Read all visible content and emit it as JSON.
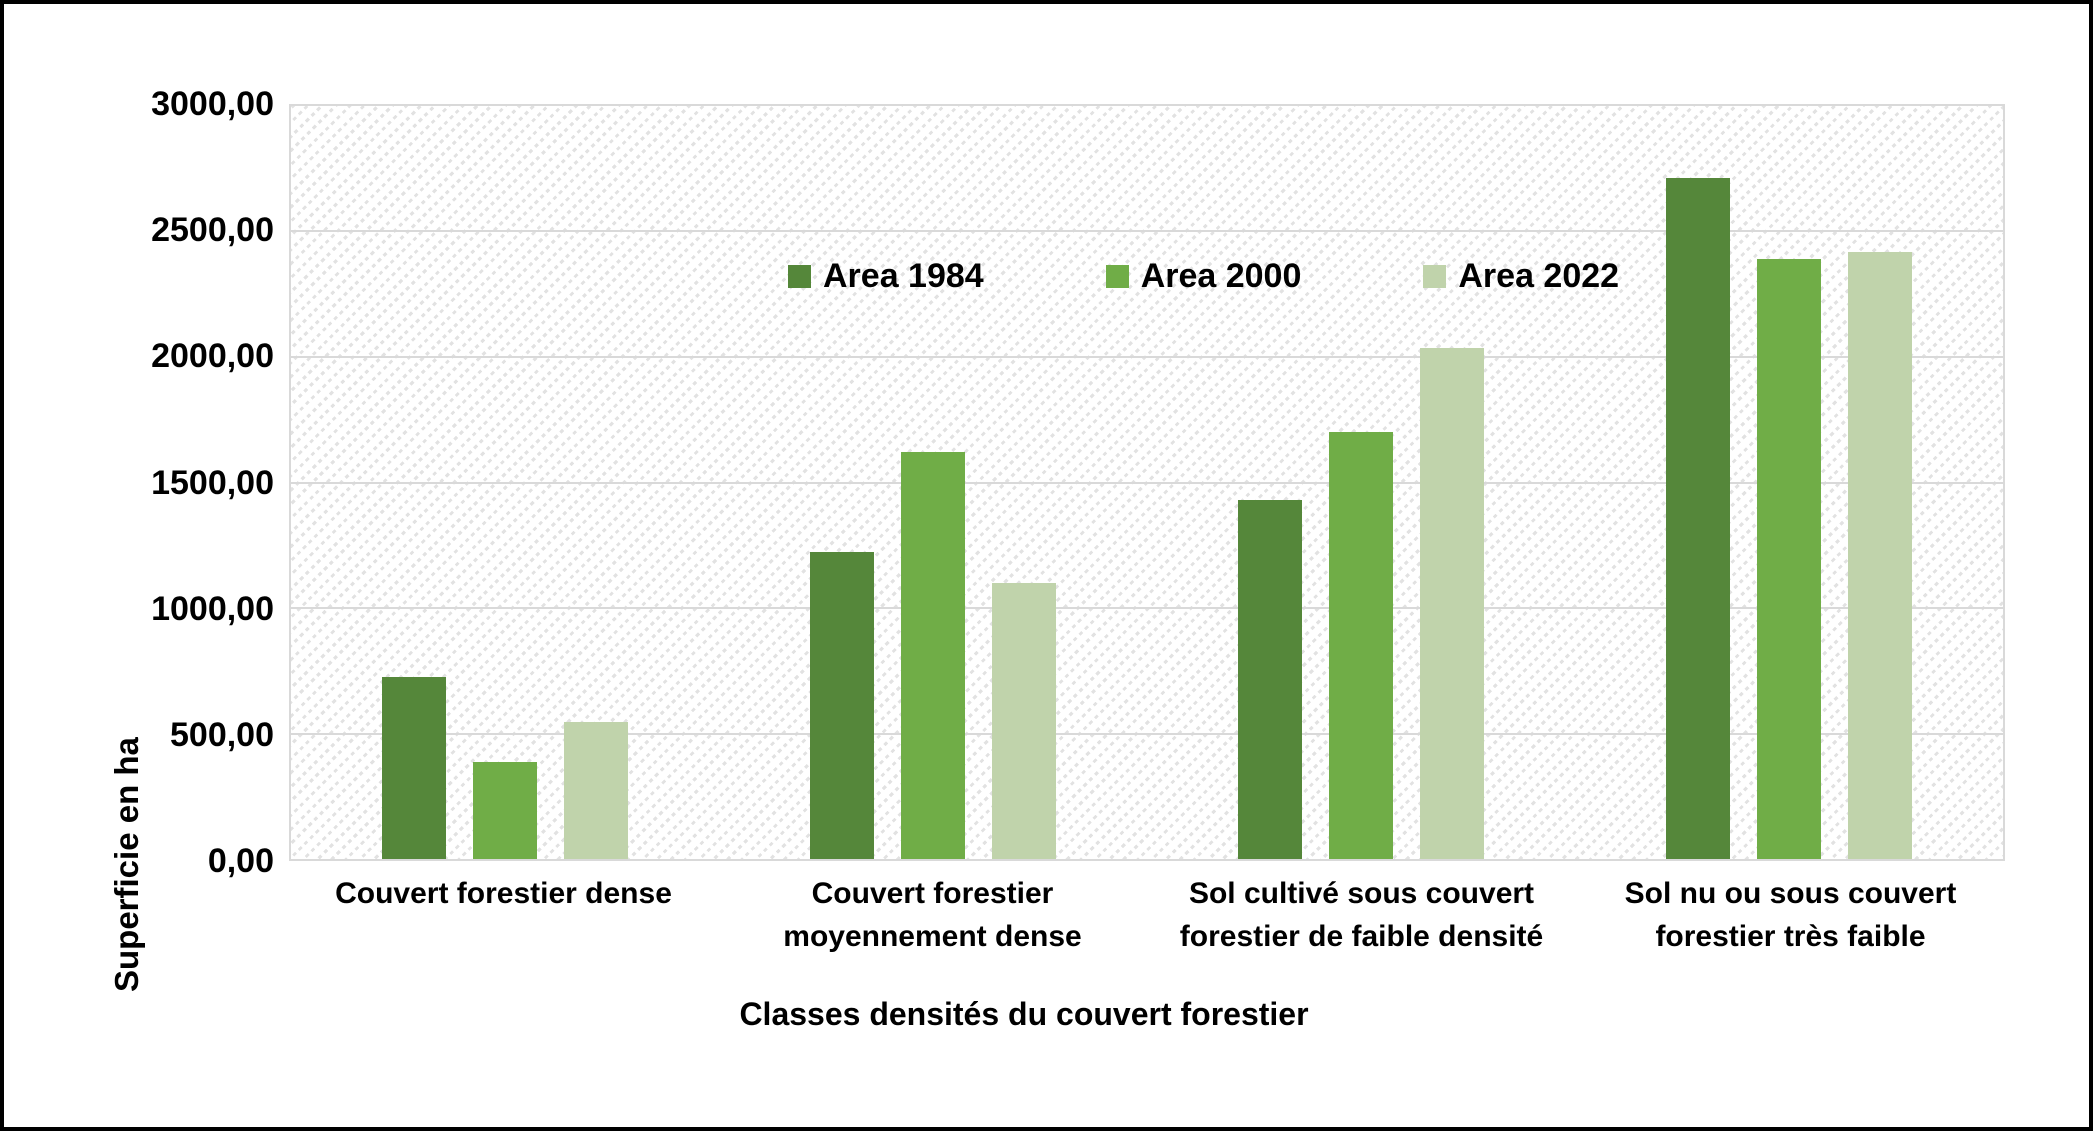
{
  "chart_data": {
    "type": "bar",
    "title": "",
    "categories": [
      "Couvert forestier dense",
      "Couvert forestier moyennement dense",
      "Sol cultivé sous couvert forestier de faible densité",
      "Sol nu ou sous couvert forestier très faible"
    ],
    "series": [
      {
        "name": "Area 1984",
        "color": "#55873A",
        "values": [
          725,
          1225,
          1430,
          2715
        ]
      },
      {
        "name": "Area 2000",
        "color": "#70AD47",
        "values": [
          385,
          1620,
          1700,
          2390
        ]
      },
      {
        "name": "Area 2022",
        "color": "#C0D3AB",
        "values": [
          545,
          1100,
          2035,
          2420
        ]
      }
    ],
    "xlabel": "Classes densités du couvert forestier",
    "ylabel": "Superficie en ha",
    "ylim": [
      0,
      3000
    ],
    "ytick_interval": 500,
    "ytick_labels": [
      "3000,00",
      "2500,00",
      "2000,00",
      "1500,00",
      "1000,00",
      "500,00",
      "0,00"
    ],
    "grid": "horizontal",
    "gridline_color": "#D9D9D9",
    "plot_background": "diagonal-hatch",
    "legend_position": "top-inside"
  }
}
